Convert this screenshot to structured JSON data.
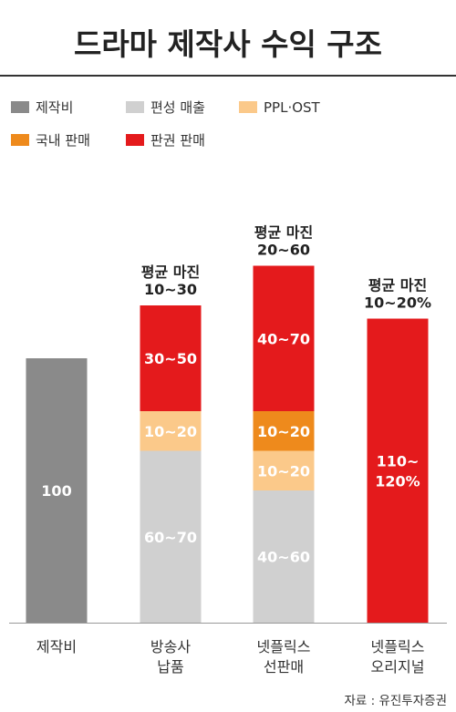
{
  "title": "드라마 제작사 수익 구조",
  "legend": [
    {
      "label": "제작비",
      "color": "#8a8a8a"
    },
    {
      "label": "편성 매출",
      "color": "#d0d0d0"
    },
    {
      "label": "PPL·OST",
      "color": "#fbc98a"
    },
    {
      "label": "국내 판매",
      "color": "#ee8a1c"
    },
    {
      "label": "판권 판매",
      "color": "#e41a1c"
    }
  ],
  "source": "자료 : 유진투자증권",
  "chart_data": {
    "type": "bar",
    "stacked": true,
    "title": "드라마 제작사 수익 구조",
    "categories": [
      [
        "제작비"
      ],
      [
        "방송사",
        "납품"
      ],
      [
        "넷플릭스",
        "선판매"
      ],
      [
        "넷플릭스",
        "오리지널"
      ]
    ],
    "bars": [
      {
        "top_label": [],
        "segments": [
          {
            "series": "제작비",
            "label": [
              "100"
            ],
            "value": 100
          }
        ]
      },
      {
        "top_label": [
          "평균 마진",
          "10~30"
        ],
        "segments": [
          {
            "series": "편성 매출",
            "label": [
              "60~70"
            ],
            "value": 65
          },
          {
            "series": "PPL·OST",
            "label": [
              "10~20"
            ],
            "value": 15
          },
          {
            "series": "판권 판매",
            "label": [
              "30~50"
            ],
            "value": 40
          }
        ]
      },
      {
        "top_label": [
          "평균 마진",
          "20~60"
        ],
        "segments": [
          {
            "series": "편성 매출",
            "label": [
              "40~60"
            ],
            "value": 50
          },
          {
            "series": "PPL·OST",
            "label": [
              "10~20"
            ],
            "value": 15
          },
          {
            "series": "국내 판매",
            "label": [
              "10~20"
            ],
            "value": 15
          },
          {
            "series": "판권 판매",
            "label": [
              "40~70"
            ],
            "value": 55
          }
        ]
      },
      {
        "top_label": [
          "평균 마진",
          "10~20%"
        ],
        "segments": [
          {
            "series": "판권 판매",
            "label": [
              "110~",
              "120%"
            ],
            "value": 115
          }
        ]
      }
    ],
    "legend_position": "top"
  }
}
